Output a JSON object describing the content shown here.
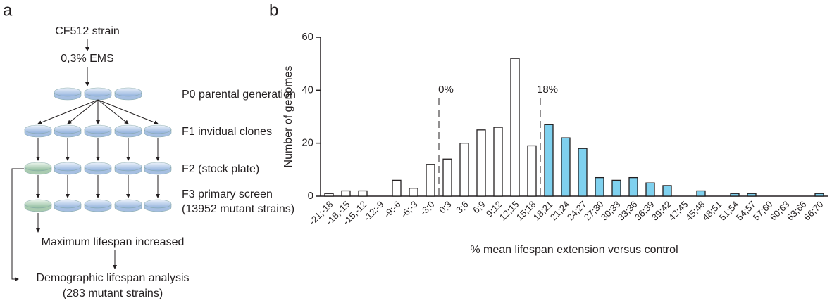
{
  "panel_a": {
    "label": "a",
    "steps": {
      "strain": "CF512 strain",
      "mutagen": "0,3% EMS",
      "p0": "P0 parental generation",
      "f1": "F1 invidual clones",
      "f2": "F2 (stock plate)",
      "f3": "F3 primary screen",
      "f3_count": "(13952 mutant strains)",
      "max": "Maximum lifespan increased",
      "demo": "Demographic lifespan analysis",
      "demo_count": "(283 mutant strains)"
    }
  },
  "chart_data": {
    "type": "bar",
    "panel_label": "b",
    "x_label": "% mean lifespan extension versus control",
    "y_label": "Number of genomes",
    "categories": [
      "-21;-18",
      "-18;-15",
      "-15;-12",
      "-12;-9",
      "-9;-6",
      "-6;-3",
      "-3;0",
      "0;3",
      "3;6",
      "6;9",
      "9;12",
      "12;15",
      "15;18",
      "18;21",
      "21;24",
      "24;27",
      "27;30",
      "30;33",
      "33;36",
      "36;39",
      "39;42",
      "42;45",
      "45;48",
      "48;51",
      "51;54",
      "54;57",
      "57;60",
      "60;63",
      "63;66",
      "66;70"
    ],
    "values": [
      1,
      2,
      2,
      0,
      6,
      3,
      12,
      14,
      20,
      25,
      26,
      52,
      19,
      27,
      22,
      18,
      7,
      6,
      7,
      5,
      4,
      0,
      2,
      0,
      1,
      1,
      0,
      0,
      0,
      1
    ],
    "colors": [
      "#ffffff",
      "#ffffff",
      "#ffffff",
      "#ffffff",
      "#ffffff",
      "#ffffff",
      "#ffffff",
      "#ffffff",
      "#ffffff",
      "#ffffff",
      "#ffffff",
      "#ffffff",
      "#ffffff",
      "#7fd1ef",
      "#7fd1ef",
      "#7fd1ef",
      "#7fd1ef",
      "#7fd1ef",
      "#7fd1ef",
      "#7fd1ef",
      "#7fd1ef",
      "#7fd1ef",
      "#7fd1ef",
      "#7fd1ef",
      "#7fd1ef",
      "#7fd1ef",
      "#7fd1ef",
      "#7fd1ef",
      "#7fd1ef",
      "#7fd1ef"
    ],
    "ylim": [
      0,
      60
    ],
    "yticks": [
      0,
      20,
      40,
      60
    ],
    "annotations": [
      {
        "text": "0%",
        "before": "0;3"
      },
      {
        "text": "18%",
        "before": "18;21"
      }
    ]
  }
}
